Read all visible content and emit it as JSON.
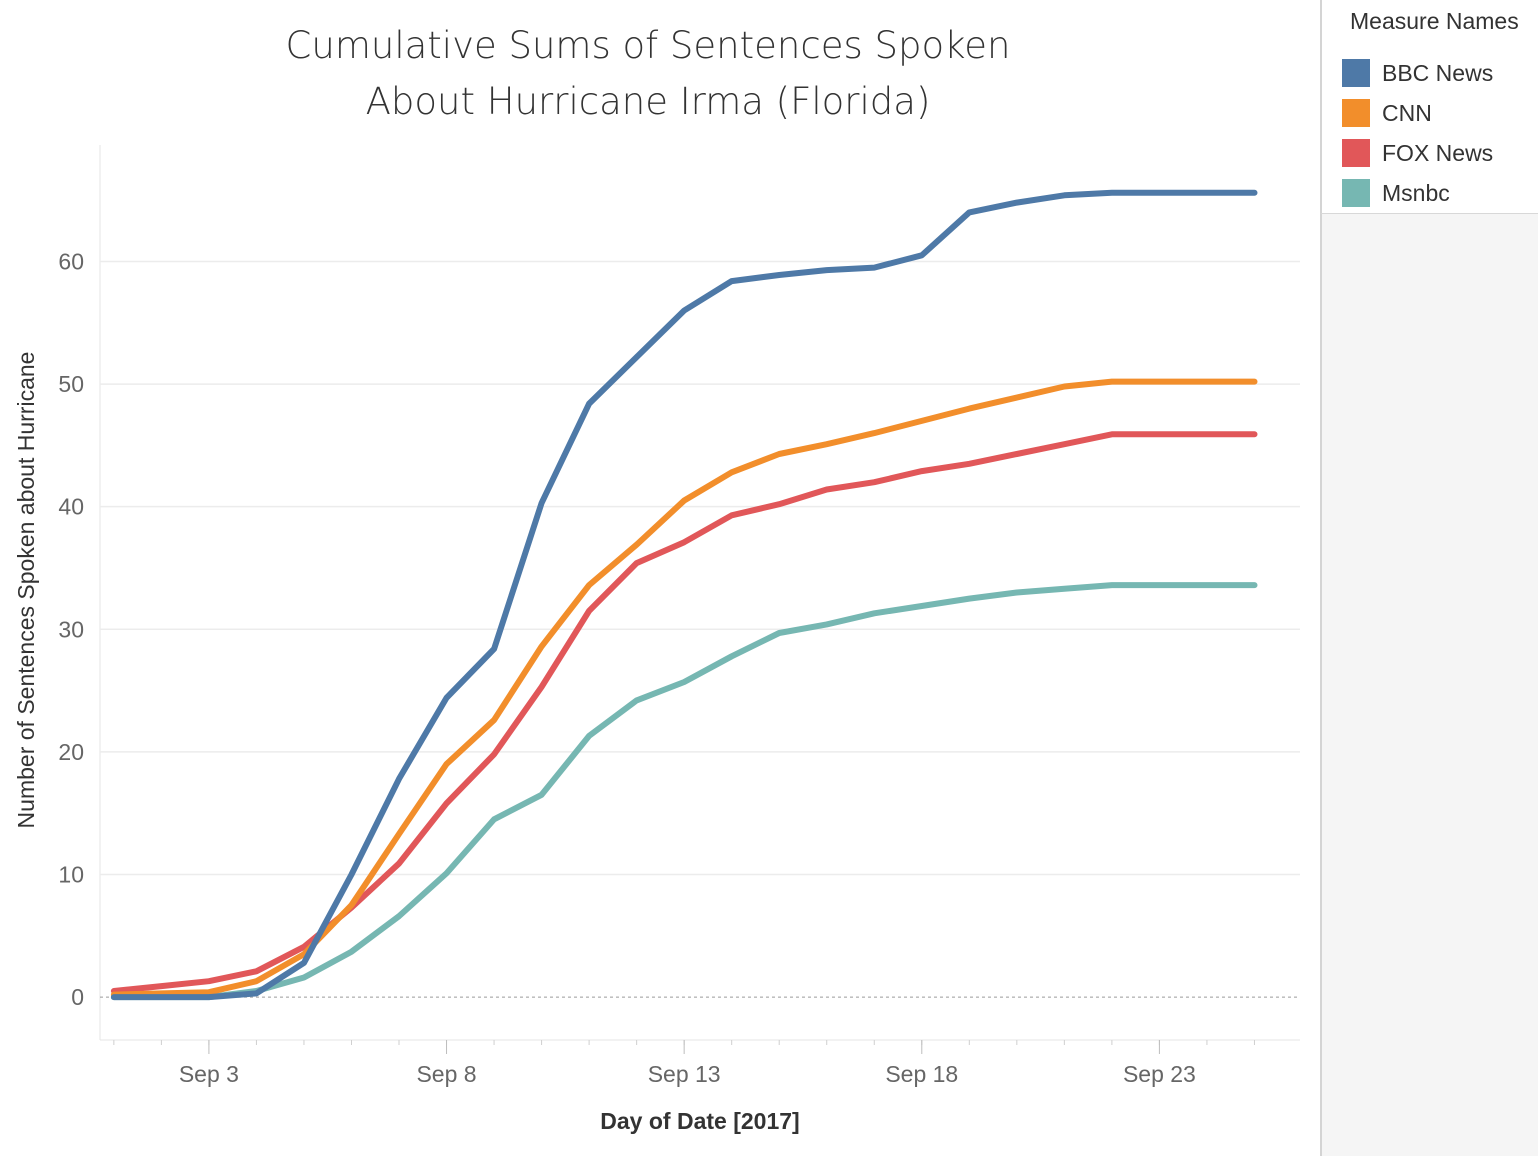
{
  "chart_data": {
    "type": "line",
    "title": [
      "Cumulative Sums of Sentences Spoken",
      "About Hurricane Irma (Florida)"
    ],
    "xlabel": "Day of Date [2017]",
    "ylabel": "Number of Sentences Spoken about Hurricane",
    "x": [
      "2017-09-01",
      "2017-09-02",
      "2017-09-03",
      "2017-09-04",
      "2017-09-05",
      "2017-09-06",
      "2017-09-07",
      "2017-09-08",
      "2017-09-09",
      "2017-09-10",
      "2017-09-11",
      "2017-09-12",
      "2017-09-13",
      "2017-09-14",
      "2017-09-15",
      "2017-09-16",
      "2017-09-17",
      "2017-09-18",
      "2017-09-19",
      "2017-09-20",
      "2017-09-21",
      "2017-09-22",
      "2017-09-23",
      "2017-09-24",
      "2017-09-25"
    ],
    "x_ticks": [
      "Sep 3",
      "Sep 8",
      "Sep 13",
      "Sep 18",
      "Sep 23"
    ],
    "x_tick_dates": [
      "2017-09-03",
      "2017-09-08",
      "2017-09-13",
      "2017-09-18",
      "2017-09-23"
    ],
    "xlim": [
      "2017-08-31T17:00",
      "2017-09-25T23:00"
    ],
    "y_ticks": [
      0,
      10,
      20,
      30,
      40,
      50,
      60
    ],
    "ylim": [
      -3.5,
      69.5
    ],
    "grid": true,
    "legend_position": "right",
    "legend_title": "Measure Names",
    "series": [
      {
        "name": "BBC News",
        "color": "#4e79a7",
        "values": [
          0,
          0,
          0,
          0.3,
          2.8,
          10,
          17.8,
          24.4,
          28.4,
          40.3,
          48.4,
          52.2,
          56,
          58.4,
          58.9,
          59.3,
          59.5,
          60.5,
          64,
          64.8,
          65.4,
          65.6,
          65.6,
          65.6,
          65.6
        ]
      },
      {
        "name": "CNN",
        "color": "#f28e2b",
        "values": [
          0.2,
          0.3,
          0.4,
          1.3,
          3.5,
          7.5,
          13.3,
          19,
          22.6,
          28.6,
          33.6,
          36.9,
          40.5,
          42.8,
          44.3,
          45.1,
          46,
          47,
          48,
          48.9,
          49.8,
          50.2,
          50.2,
          50.2,
          50.2
        ]
      },
      {
        "name": "FOX News",
        "color": "#e15759",
        "values": [
          0.5,
          0.9,
          1.3,
          2.1,
          4.1,
          7.3,
          10.9,
          15.8,
          19.8,
          25.3,
          31.5,
          35.4,
          37.1,
          39.3,
          40.2,
          41.4,
          42,
          42.9,
          43.5,
          44.3,
          45.1,
          45.9,
          45.9,
          45.9,
          45.9
        ]
      },
      {
        "name": "Msnbc",
        "color": "#76b7b2",
        "values": [
          0,
          0,
          0,
          0.5,
          1.6,
          3.7,
          6.6,
          10.1,
          14.5,
          16.5,
          21.3,
          24.2,
          25.7,
          27.8,
          29.7,
          30.4,
          31.3,
          31.9,
          32.5,
          33,
          33.3,
          33.6,
          33.6,
          33.6,
          33.6
        ]
      }
    ]
  }
}
